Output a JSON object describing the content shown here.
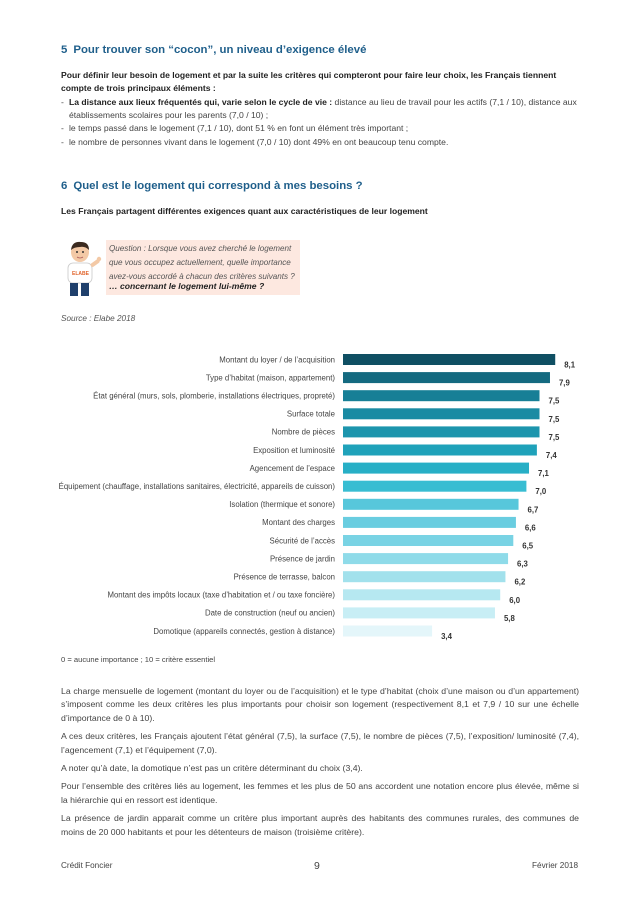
{
  "section5": {
    "number": "5",
    "title": "Pour trouver son “cocon”, un niveau d’exigence élevé",
    "intro": "Pour définir leur besoin de logement et par la suite les critères qui compteront pour faire leur choix, les Français tiennent compte de trois principaux éléments :",
    "bullet1_bold": "La distance aux lieux fréquentés qui, varie selon le cycle de vie :",
    "bullet1_rest": " distance au lieu de travail pour les actifs (7,1 / 10), distance aux établissements scolaires pour les parents (7,0 / 10) ;",
    "bullet2": "le temps passé dans le logement (7,1 / 10), dont 51 % en font un élément très important ;",
    "bullet3": "le nombre de personnes vivant dans le logement (7,0 / 10) dont 49% en ont beaucoup tenu compte."
  },
  "section6": {
    "number": "6",
    "title": "Quel est le logement qui correspond à mes besoins ?",
    "subtitle": "Les Français partagent différentes exigences quant aux caractéristiques de leur logement"
  },
  "question": {
    "text": "Question : Lorsque vous avez cherché le logement que vous occupez actuellement, quelle importance avez-vous accordé à chacun des critères suivants ?",
    "emphasis": "… concernant le logement lui-même ?",
    "logo_text": "ELABE"
  },
  "source": "Source : Elabe 2018",
  "chart_data": {
    "type": "bar",
    "orientation": "horizontal",
    "categories": [
      "Montant du loyer / de l’acquisition",
      "Type d’habitat (maison, appartement)",
      "État général (murs, sols, plomberie, installations électriques, propreté)",
      "Surface totale",
      "Nombre de pièces",
      "Exposition et luminosité",
      "Agencement de l’espace",
      "Équipement (chauffage, installations sanitaires, électricité, appareils de cuisson)",
      "Isolation (thermique et sonore)",
      "Montant des charges",
      "Sécurité de l’accès",
      "Présence de jardin",
      "Présence de terrasse, balcon",
      "Montant des impôts locaux (taxe d’habitation et / ou taxe foncière)",
      "Date de construction (neuf ou ancien)",
      "Domotique (appareils connectés, gestion à distance)"
    ],
    "values": [
      8.1,
      7.9,
      7.5,
      7.5,
      7.5,
      7.4,
      7.1,
      7.0,
      6.7,
      6.6,
      6.5,
      6.3,
      6.2,
      6.0,
      5.8,
      3.4
    ],
    "value_labels": [
      "8,1",
      "7,9",
      "7,5",
      "7,5",
      "7,5",
      "7,4",
      "7,1",
      "7,0",
      "6,7",
      "6,6",
      "6,5",
      "6,3",
      "6,2",
      "6,0",
      "5,8",
      "3,4"
    ],
    "colors": [
      "#0f4f63",
      "#146a80",
      "#177f96",
      "#1a8ba3",
      "#1c95ad",
      "#1fa2ba",
      "#27afc6",
      "#38bdd2",
      "#57c7db",
      "#69cde0",
      "#79d3e4",
      "#8fdbe9",
      "#a2e1ec",
      "#b6e8f1",
      "#c8eef5",
      "#e4f6fa"
    ],
    "xlim": [
      0,
      10
    ],
    "grid": false
  },
  "scale_note": "0 = aucune importance ; 10 = critère essentiel",
  "paragraphs": [
    "La charge mensuelle de logement (montant du loyer ou de l’acquisition) et le type d’habitat (choix d’une maison ou d’un appartement) s’imposent comme les deux critères les plus importants pour choisir son logement (respectivement 8,1 et 7,9 / 10 sur une échelle d’importance de 0 à 10).",
    "A ces deux critères, les Français ajoutent l’état général (7,5), la surface (7,5), le nombre de pièces (7,5), l’exposition/ luminosité (7,4), l’agencement (7,1) et l’équipement (7,0).",
    "A noter qu’à date, la domotique n’est pas un critère déterminant du choix (3,4).",
    "Pour l’ensemble des critères liés au logement, les femmes et les plus de 50 ans accordent une notation encore plus élevée, même si la hiérarchie qui en ressort est identique.",
    "La présence de jardin apparait comme un critère plus important auprès des habitants des communes rurales, des communes de moins de 20 000 habitants et pour les détenteurs de maison (troisième critère)."
  ],
  "footer": {
    "left": "Crédit Foncier",
    "page": "9",
    "right": "Février 2018"
  }
}
